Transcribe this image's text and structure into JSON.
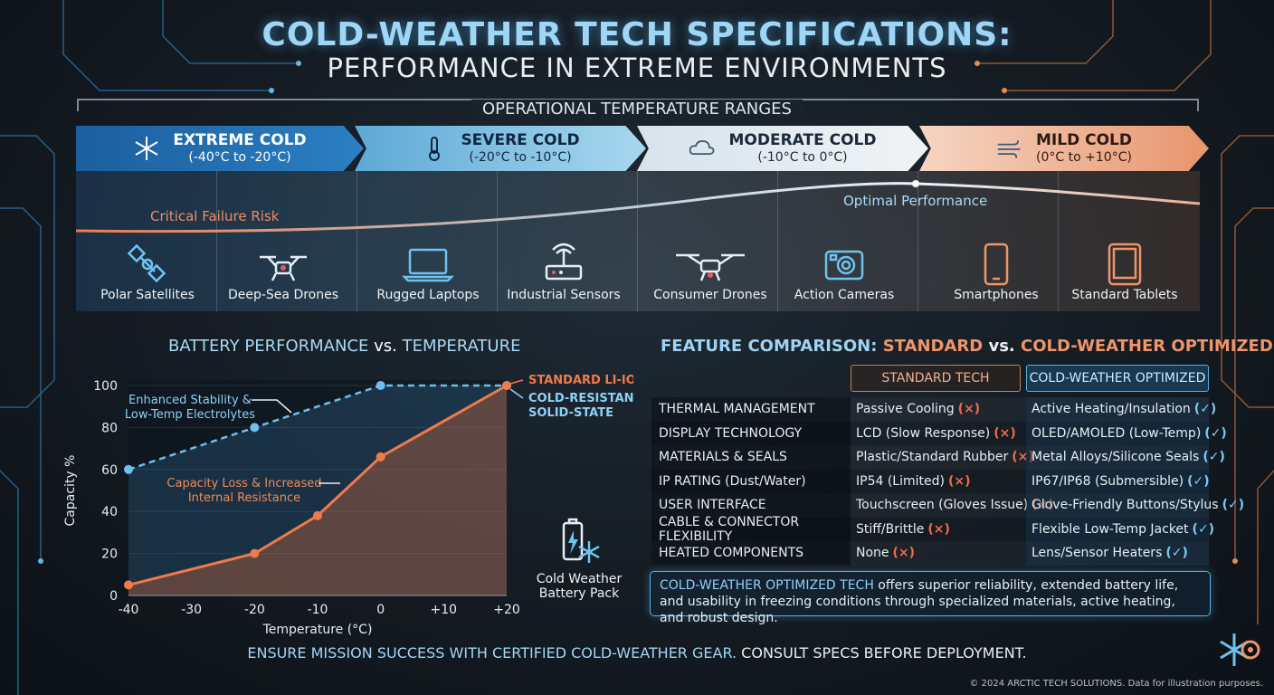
{
  "header": {
    "title": "COLD-WEATHER TECH SPECIFICATIONS:",
    "subtitle": "PERFORMANCE IN EXTREME ENVIRONMENTS",
    "section": "OPERATIONAL TEMPERATURE RANGES"
  },
  "bands": [
    {
      "name": "EXTREME COLD",
      "range": "(-40°C to -20°C)",
      "icon": "snowflake-icon"
    },
    {
      "name": "SEVERE COLD",
      "range": "(-20°C to -10°C)",
      "icon": "thermometer-icon"
    },
    {
      "name": "MODERATE COLD",
      "range": "(-10°C to 0°C)",
      "icon": "cloud-icon"
    },
    {
      "name": "MILD COLD",
      "range": "(0°C to +10°C)",
      "icon": "wind-icon"
    }
  ],
  "curve_labels": {
    "risk": "Critical Failure Risk",
    "optimal": "Optimal Performance"
  },
  "devices": [
    {
      "label": "Polar Satellites",
      "icon": "satellite-icon"
    },
    {
      "label": "Deep-Sea Drones",
      "icon": "drone-icon"
    },
    {
      "label": "Rugged Laptops",
      "icon": "laptop-icon"
    },
    {
      "label": "Industrial Sensors",
      "icon": "router-icon"
    },
    {
      "label": "Consumer Drones",
      "icon": "drone-icon"
    },
    {
      "label": "Action Cameras",
      "icon": "camera-icon"
    },
    {
      "label": "Smartphones",
      "icon": "smartphone-icon"
    },
    {
      "label": "Standard Tablets",
      "icon": "tablet-icon"
    }
  ],
  "battery": {
    "title_a": "BATTERY PERFORMANCE",
    "title_b": " vs. ",
    "title_c": "TEMPERATURE",
    "pack_label_1": "Cold Weather",
    "pack_label_2": "Battery Pack"
  },
  "chart_data": {
    "type": "line",
    "x": [
      -40,
      -20,
      -10,
      0,
      20
    ],
    "xticks": [
      "-40",
      "-30",
      "-20",
      "-10",
      "0",
      "+10",
      "+20"
    ],
    "xtick_values": [
      -40,
      -30,
      -20,
      -10,
      0,
      10,
      20
    ],
    "yticks": [
      0,
      20,
      40,
      60,
      80,
      100
    ],
    "xlabel": "Temperature (°C)",
    "ylabel": "Capacity %",
    "xlim": [
      -40,
      20
    ],
    "ylim": [
      0,
      100
    ],
    "series": [
      {
        "name": "STANDARD LI-ION",
        "x": [
          -40,
          -20,
          -10,
          0,
          20
        ],
        "values": [
          5,
          20,
          38,
          66,
          100
        ],
        "color": "#f07a4a"
      },
      {
        "name": "COLD-RESISTANT SOLID-STATE",
        "x": [
          -40,
          -20,
          0,
          20
        ],
        "values": [
          60,
          80,
          100,
          100
        ],
        "color": "#6cc0ee"
      }
    ],
    "annotations": [
      {
        "text_1": "Enhanced Stability &",
        "text_2": "Low-Temp Electrolytes"
      },
      {
        "text_1": "Capacity Loss & Increased",
        "text_2": "Internal Resistance"
      }
    ],
    "legend_1": "STANDARD LI-ION",
    "legend_2a": "COLD-RESISTANT",
    "legend_2b": "SOLID-STATE"
  },
  "comparison": {
    "title_a": "FEATURE COMPARISON: ",
    "title_b": "STANDARD",
    "title_c": " vs. ",
    "title_d": "COLD-WEATHER OPTIMIZED",
    "col_standard": "STANDARD TECH",
    "col_cold": "COLD-WEATHER OPTIMIZED",
    "rows": [
      {
        "category": "THERMAL MANAGEMENT",
        "standard": "Passive Cooling",
        "cold": "Active Heating/Insulation"
      },
      {
        "category": "DISPLAY TECHNOLOGY",
        "standard": "LCD (Slow Response)",
        "cold": "OLED/AMOLED (Low-Temp)"
      },
      {
        "category": "MATERIALS & SEALS",
        "standard": "Plastic/Standard Rubber",
        "cold": "Metal Alloys/Silicone Seals"
      },
      {
        "category": "IP RATING (Dust/Water)",
        "standard": "IP54 (Limited)",
        "cold": "IP67/IP68 (Submersible)"
      },
      {
        "category": "USER INTERFACE",
        "standard": "Touchscreen (Gloves Issue)",
        "cold": "Glove-Friendly Buttons/Stylus"
      },
      {
        "category": "CABLE & CONNECTOR FLEXIBILITY",
        "standard": "Stiff/Brittle",
        "cold": "Flexible Low-Temp Jacket"
      },
      {
        "category": "HEATED COMPONENTS",
        "standard": "None",
        "cold": "Lens/Sensor Heaters"
      }
    ],
    "x_mark": "(×)",
    "check_mark": "(✓)",
    "summary_highlight": "COLD-WEATHER OPTIMIZED TECH",
    "summary_rest": " offers superior reliability, extended battery life, and usability in freezing conditions through specialized materials, active heating, and robust design."
  },
  "footer": {
    "highlight": "ENSURE MISSION SUCCESS WITH CERTIFIED COLD-WEATHER GEAR.",
    "rest": " CONSULT SPECS BEFORE DEPLOYMENT.",
    "copyright": "© 2024 ARCTIC TECH SOLUTIONS. Data for illustration purposes."
  }
}
